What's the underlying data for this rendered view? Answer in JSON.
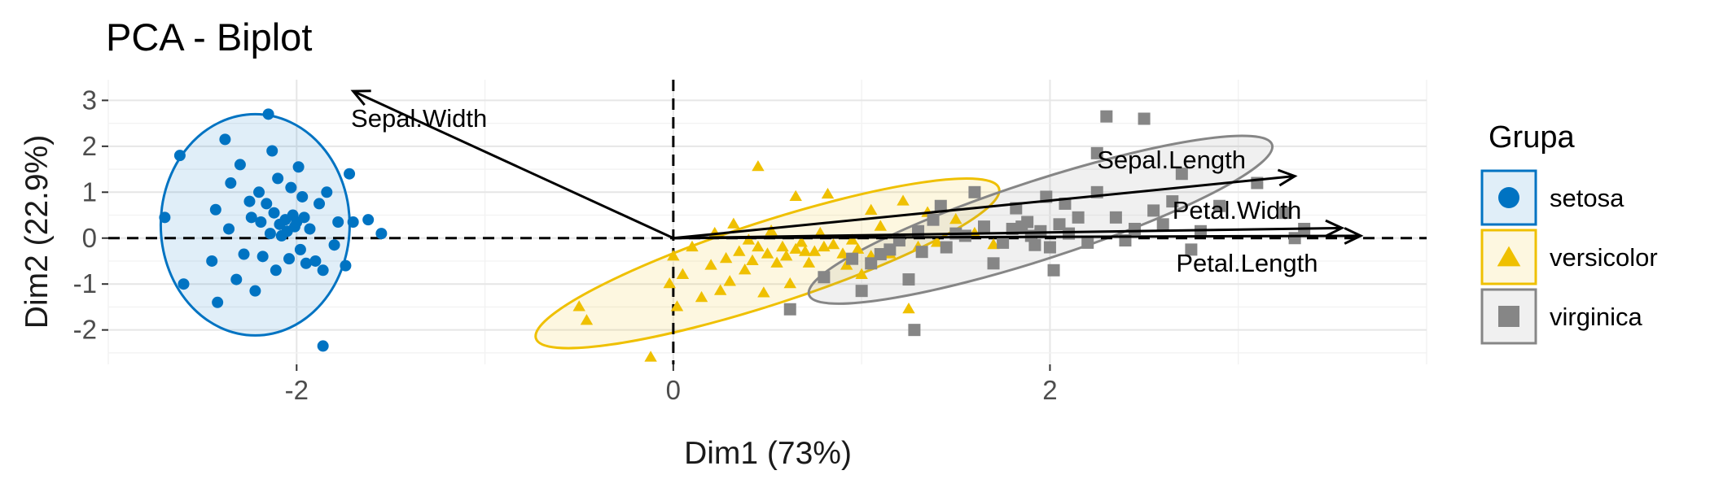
{
  "chart_data": {
    "type": "scatter",
    "title": "PCA - Biplot",
    "xlabel": "Dim1 (73%)",
    "ylabel": "Dim2 (22.9%)",
    "xlim": [
      -3.0,
      4.0
    ],
    "ylim": [
      -2.75,
      3.45
    ],
    "xticks": [
      -2,
      0,
      2
    ],
    "xtick_labels": [
      "-2",
      "0",
      "2"
    ],
    "yticks": [
      -2,
      -1,
      0,
      1,
      2,
      3
    ],
    "ytick_labels": [
      "-2",
      "-1",
      "0",
      "1",
      "2",
      "3"
    ],
    "grid": true,
    "legend": {
      "title": "Grupa",
      "position": "right"
    },
    "series": [
      {
        "name": "setosa",
        "color": "#0073C2",
        "marker": "circle",
        "ellipse": {
          "cx": -2.22,
          "cy": 0.29,
          "rx": 1.0,
          "ry": 2.35
        },
        "points": [
          [
            -2.7,
            0.45
          ],
          [
            -2.62,
            1.8
          ],
          [
            -2.6,
            -1.0
          ],
          [
            -2.45,
            -0.5
          ],
          [
            -2.43,
            0.62
          ],
          [
            -2.42,
            -1.4
          ],
          [
            -2.38,
            2.15
          ],
          [
            -2.36,
            0.2
          ],
          [
            -2.35,
            1.2
          ],
          [
            -2.32,
            -0.9
          ],
          [
            -2.3,
            1.6
          ],
          [
            -2.28,
            -0.35
          ],
          [
            -2.25,
            0.8
          ],
          [
            -2.24,
            0.45
          ],
          [
            -2.22,
            -1.15
          ],
          [
            -2.2,
            1.0
          ],
          [
            -2.19,
            0.35
          ],
          [
            -2.18,
            -0.4
          ],
          [
            -2.16,
            0.75
          ],
          [
            -2.15,
            2.7
          ],
          [
            -2.14,
            0.1
          ],
          [
            -2.13,
            1.9
          ],
          [
            -2.12,
            0.55
          ],
          [
            -2.11,
            -0.7
          ],
          [
            -2.1,
            1.3
          ],
          [
            -2.09,
            0.3
          ],
          [
            -2.08,
            0.05
          ],
          [
            -2.06,
            0.4
          ],
          [
            -2.05,
            0.15
          ],
          [
            -2.04,
            -0.45
          ],
          [
            -2.03,
            1.1
          ],
          [
            -2.02,
            0.5
          ],
          [
            -2.01,
            0.25
          ],
          [
            -2.0,
            0.35
          ],
          [
            -1.99,
            1.55
          ],
          [
            -1.98,
            -0.25
          ],
          [
            -1.97,
            0.9
          ],
          [
            -1.96,
            0.45
          ],
          [
            -1.95,
            -0.55
          ],
          [
            -1.93,
            0.2
          ],
          [
            -1.9,
            -0.5
          ],
          [
            -1.88,
            0.75
          ],
          [
            -1.86,
            -0.7
          ],
          [
            -1.84,
            1.0
          ],
          [
            -1.8,
            -0.15
          ],
          [
            -1.78,
            0.35
          ],
          [
            -1.74,
            -0.6
          ],
          [
            -1.72,
            1.4
          ],
          [
            -1.7,
            0.35
          ],
          [
            -1.62,
            0.4
          ],
          [
            -1.55,
            0.1
          ],
          [
            -1.86,
            -2.35
          ]
        ]
      },
      {
        "name": "versicolor",
        "color": "#EFC000",
        "marker": "triangle",
        "ellipse": {
          "cx": 0.5,
          "cy": -0.55,
          "rx": 2.35,
          "ry": 1.0,
          "angle": -18
        },
        "points": [
          [
            -0.5,
            -1.5
          ],
          [
            -0.46,
            -1.8
          ],
          [
            -0.12,
            -2.6
          ],
          [
            -0.02,
            -1.0
          ],
          [
            0.0,
            -0.4
          ],
          [
            0.02,
            -1.5
          ],
          [
            0.05,
            -0.8
          ],
          [
            0.1,
            -0.2
          ],
          [
            0.15,
            -1.3
          ],
          [
            0.2,
            -0.6
          ],
          [
            0.22,
            0.1
          ],
          [
            0.25,
            -1.15
          ],
          [
            0.28,
            -0.45
          ],
          [
            0.3,
            -0.95
          ],
          [
            0.32,
            0.3
          ],
          [
            0.35,
            -0.3
          ],
          [
            0.38,
            -0.7
          ],
          [
            0.4,
            -0.05
          ],
          [
            0.42,
            -0.5
          ],
          [
            0.45,
            -0.2
          ],
          [
            0.48,
            -1.2
          ],
          [
            0.5,
            -0.35
          ],
          [
            0.52,
            0.15
          ],
          [
            0.55,
            -0.55
          ],
          [
            0.58,
            -0.2
          ],
          [
            0.6,
            -0.4
          ],
          [
            0.62,
            -1.0
          ],
          [
            0.65,
            -0.25
          ],
          [
            0.68,
            -0.1
          ],
          [
            0.7,
            -0.3
          ],
          [
            0.72,
            -0.55
          ],
          [
            0.75,
            -0.3
          ],
          [
            0.78,
            0.1
          ],
          [
            0.8,
            -0.2
          ],
          [
            0.85,
            -0.15
          ],
          [
            0.9,
            -0.35
          ],
          [
            0.92,
            -0.6
          ],
          [
            0.95,
            -0.05
          ],
          [
            0.98,
            -0.25
          ],
          [
            1.0,
            -0.8
          ],
          [
            1.05,
            -0.4
          ],
          [
            1.1,
            0.25
          ],
          [
            1.15,
            -0.35
          ],
          [
            1.2,
            -0.05
          ],
          [
            1.25,
            -1.55
          ],
          [
            1.3,
            -0.2
          ],
          [
            1.4,
            -0.1
          ],
          [
            1.5,
            0.4
          ],
          [
            1.6,
            0.1
          ],
          [
            1.7,
            -0.15
          ],
          [
            0.45,
            1.55
          ],
          [
            0.65,
            0.9
          ],
          [
            0.82,
            0.95
          ],
          [
            1.05,
            0.6
          ],
          [
            1.22,
            0.8
          ],
          [
            1.35,
            0.55
          ]
        ]
      },
      {
        "name": "virginica",
        "color": "#868686",
        "marker": "square",
        "ellipse": {
          "cx": 1.95,
          "cy": 0.4,
          "rx": 2.35,
          "ry": 0.95,
          "angle": -18
        },
        "points": [
          [
            0.62,
            -1.55
          ],
          [
            0.8,
            -0.85
          ],
          [
            0.95,
            -0.45
          ],
          [
            1.0,
            -1.15
          ],
          [
            1.05,
            -0.55
          ],
          [
            1.1,
            -0.35
          ],
          [
            1.15,
            -0.25
          ],
          [
            1.2,
            -0.05
          ],
          [
            1.25,
            -0.9
          ],
          [
            1.28,
            -2.0
          ],
          [
            1.3,
            0.15
          ],
          [
            1.32,
            -0.3
          ],
          [
            1.38,
            0.4
          ],
          [
            1.42,
            0.7
          ],
          [
            1.45,
            -0.2
          ],
          [
            1.5,
            0.1
          ],
          [
            1.55,
            0.05
          ],
          [
            1.6,
            1.0
          ],
          [
            1.65,
            0.25
          ],
          [
            1.7,
            -0.55
          ],
          [
            1.75,
            -0.1
          ],
          [
            1.8,
            0.2
          ],
          [
            1.82,
            0.65
          ],
          [
            1.85,
            0.25
          ],
          [
            1.88,
            0.35
          ],
          [
            1.9,
            0.05
          ],
          [
            1.92,
            -0.15
          ],
          [
            1.95,
            0.15
          ],
          [
            1.98,
            0.9
          ],
          [
            2.0,
            -0.2
          ],
          [
            2.02,
            -0.7
          ],
          [
            2.05,
            0.3
          ],
          [
            2.08,
            0.75
          ],
          [
            2.1,
            0.1
          ],
          [
            2.15,
            0.45
          ],
          [
            2.2,
            -0.1
          ],
          [
            2.25,
            1.0
          ],
          [
            2.3,
            2.65
          ],
          [
            2.35,
            0.45
          ],
          [
            2.4,
            -0.05
          ],
          [
            2.45,
            0.2
          ],
          [
            2.5,
            2.6
          ],
          [
            2.55,
            0.6
          ],
          [
            2.6,
            0.3
          ],
          [
            2.65,
            0.8
          ],
          [
            2.7,
            1.4
          ],
          [
            2.75,
            -0.25
          ],
          [
            2.8,
            0.15
          ],
          [
            2.9,
            0.7
          ],
          [
            3.1,
            1.2
          ],
          [
            3.25,
            0.55
          ],
          [
            3.3,
            0.0
          ],
          [
            3.35,
            0.2
          ],
          [
            2.25,
            1.85
          ]
        ]
      }
    ],
    "variables": [
      {
        "name": "Sepal.Width",
        "x": -1.7,
        "y": 3.2,
        "label_x": -1.35,
        "label_y": 2.6,
        "label_align": "middle"
      },
      {
        "name": "Sepal.Length",
        "x": 3.3,
        "y": 1.35,
        "label_x": 2.25,
        "label_y": 1.7,
        "label_align": "start"
      },
      {
        "name": "Petal.Width",
        "x": 3.55,
        "y": 0.22,
        "label_x": 2.65,
        "label_y": 0.6,
        "label_align": "start"
      },
      {
        "name": "Petal.Length",
        "x": 3.65,
        "y": 0.05,
        "label_x": 2.67,
        "label_y": -0.55,
        "label_align": "start"
      }
    ]
  }
}
